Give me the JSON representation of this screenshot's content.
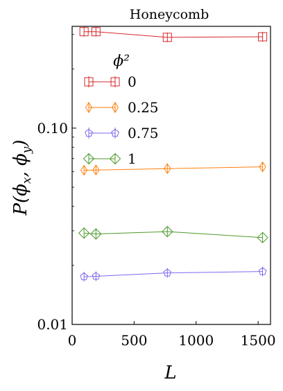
{
  "chart_data": {
    "type": "line",
    "title": "Honeycomb",
    "xlabel": "L",
    "ylabel": "P(ϕx, ϕy)",
    "xlim": [
      0,
      1600
    ],
    "ylim": [
      0.01,
      0.33
    ],
    "yscale": "log",
    "x_ticks": [
      0,
      500,
      1000,
      1500
    ],
    "x_tick_labels": [
      "0",
      "500",
      "1000",
      "1500"
    ],
    "y_ticks": [
      0.01,
      0.1
    ],
    "y_tick_labels": [
      "0.01",
      "0.10"
    ],
    "legend_title": "ϕ²",
    "legend_placement": "upper-left",
    "grid": false,
    "x": [
      96,
      192,
      768,
      1536
    ],
    "series": [
      {
        "name": "0",
        "color": "#d62728",
        "marker": "square",
        "values": [
          0.31,
          0.31,
          0.29,
          0.292
        ]
      },
      {
        "name": "0.25",
        "color": "#ff7f0e",
        "marker": "thin-diamond",
        "values": [
          0.061,
          0.0612,
          0.0622,
          0.0635
        ]
      },
      {
        "name": "0.75",
        "color": "#7b68ee",
        "marker": "pentagon",
        "values": [
          0.0175,
          0.0176,
          0.0183,
          0.0186
        ]
      },
      {
        "name": "1",
        "color": "#4c9a2a",
        "marker": "diamond",
        "values": [
          0.0292,
          0.0289,
          0.0297,
          0.0277
        ]
      }
    ]
  }
}
